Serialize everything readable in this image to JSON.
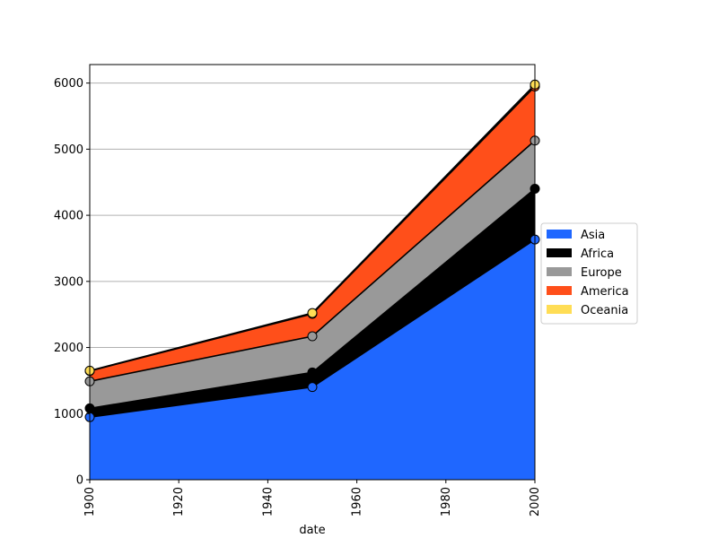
{
  "chart_data": {
    "type": "area",
    "stacked": true,
    "xlabel": "date",
    "ylabel": "",
    "title": "",
    "x": [
      1900,
      1950,
      2000
    ],
    "xlim": [
      1900,
      2000
    ],
    "ylim": [
      0,
      6280
    ],
    "xticks": [
      "1900",
      "1920",
      "1940",
      "1960",
      "1980",
      "2000"
    ],
    "yticks": [
      "0",
      "1000",
      "2000",
      "3000",
      "4000",
      "5000",
      "6000"
    ],
    "grid": "y-axis",
    "legend_position": "right-outside",
    "series": [
      {
        "name": "Asia",
        "values": [
          947,
          1402,
          3634
        ],
        "color": "#1f67ff"
      },
      {
        "name": "Africa",
        "values": [
          133,
          221,
          767
        ],
        "color": "#000000"
      },
      {
        "name": "Europe",
        "values": [
          408,
          547,
          729
        ],
        "color": "#999999"
      },
      {
        "name": "America",
        "values": [
          156,
          339,
          818
        ],
        "color": "#ff4f1a"
      },
      {
        "name": "Oceania",
        "values": [
          6,
          13,
          30
        ],
        "color": "#ffdd55"
      }
    ]
  }
}
